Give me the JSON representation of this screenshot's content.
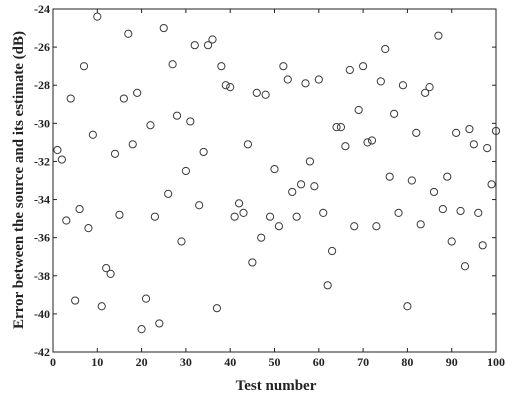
{
  "chart_data": {
    "type": "scatter",
    "title": "",
    "xlabel": "Test number",
    "ylabel": "Error between the source and its estimate (dB)",
    "xlim": [
      0,
      100
    ],
    "ylim": [
      -42,
      -24
    ],
    "xticks": [
      0,
      10,
      20,
      30,
      40,
      50,
      60,
      70,
      80,
      90,
      100
    ],
    "yticks": [
      -24,
      -26,
      -28,
      -30,
      -32,
      -34,
      -36,
      -38,
      -40,
      -42
    ],
    "grid": false,
    "legend": "none",
    "marker": "circle",
    "colors": {
      "marker": "#3a3a3a",
      "axis": "#222222"
    },
    "series": [
      {
        "x": [
          1,
          2,
          3,
          4,
          5,
          6,
          7,
          8,
          9,
          10,
          11,
          12,
          13,
          14,
          15,
          16,
          17,
          18,
          19,
          20,
          21,
          22,
          23,
          24,
          25,
          26,
          27,
          28,
          29,
          30,
          31,
          32,
          33,
          34,
          35,
          36,
          37,
          38,
          39,
          40,
          41,
          42,
          43,
          44,
          45,
          46,
          47,
          48,
          49,
          50,
          51,
          52,
          53,
          54,
          55,
          56,
          57,
          58,
          59,
          60,
          61,
          62,
          63,
          64,
          65,
          66,
          67,
          68,
          69,
          70,
          71,
          72,
          73,
          74,
          75,
          76,
          77,
          78,
          79,
          80,
          81,
          82,
          83,
          84,
          85,
          86,
          87,
          88,
          89,
          90,
          91,
          92,
          93,
          94,
          95,
          96,
          97,
          98,
          99,
          100
        ],
        "y": [
          -31.4,
          -31.9,
          -35.1,
          -28.7,
          -39.3,
          -34.5,
          -27.0,
          -35.5,
          -30.6,
          -24.4,
          -39.6,
          -37.6,
          -37.9,
          -31.6,
          -34.8,
          -28.7,
          -25.3,
          -31.1,
          -28.4,
          -40.8,
          -39.2,
          -30.1,
          -34.9,
          -40.5,
          -25.0,
          -33.7,
          -26.9,
          -29.6,
          -36.2,
          -32.5,
          -29.9,
          -25.9,
          -34.3,
          -31.5,
          -25.9,
          -25.6,
          -39.7,
          -27.0,
          -28.0,
          -28.1,
          -34.9,
          -34.2,
          -34.7,
          -31.1,
          -37.3,
          -28.4,
          -36.0,
          -28.5,
          -34.9,
          -32.4,
          -35.4,
          -27.0,
          -27.7,
          -33.6,
          -34.9,
          -33.2,
          -27.9,
          -32.0,
          -33.3,
          -27.7,
          -34.7,
          -38.5,
          -36.7,
          -30.2,
          -30.2,
          -31.2,
          -27.2,
          -35.4,
          -29.3,
          -27.0,
          -31.0,
          -30.9,
          -35.4,
          -27.8,
          -26.1,
          -32.8,
          -29.5,
          -34.7,
          -28.0,
          -39.6,
          -33.0,
          -30.5,
          -35.3,
          -28.4,
          -28.1,
          -33.6,
          -25.4,
          -34.5,
          -32.8,
          -36.2,
          -30.5,
          -34.6,
          -37.5,
          -30.3,
          -31.1,
          -34.7,
          -36.4,
          -31.3,
          -33.2,
          -30.4
        ]
      }
    ]
  }
}
